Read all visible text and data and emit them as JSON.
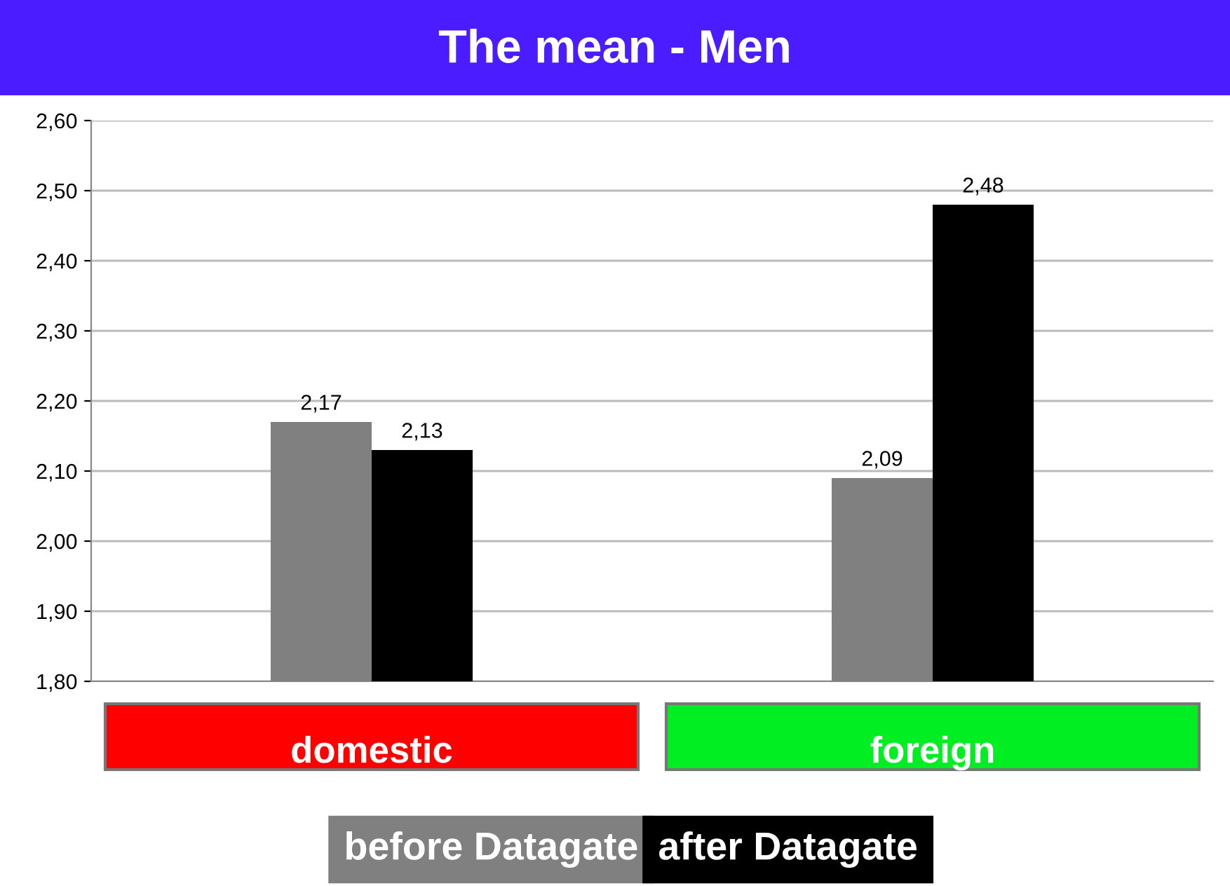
{
  "chart_data": {
    "type": "bar",
    "title": "The mean - Men",
    "categories": [
      "domestic",
      "foreign"
    ],
    "series": [
      {
        "name": "before Datagate",
        "color": "#808080",
        "values": [
          2.17,
          2.09
        ],
        "value_labels": [
          "2,17",
          "2,09"
        ]
      },
      {
        "name": "after Datagate",
        "color": "#000000",
        "values": [
          2.13,
          2.48
        ],
        "value_labels": [
          "2,13",
          "2,48"
        ]
      }
    ],
    "ylim": [
      1.8,
      2.6
    ],
    "yticks": [
      {
        "value": 1.8,
        "label": "1,80"
      },
      {
        "value": 1.9,
        "label": "1,90"
      },
      {
        "value": 2.0,
        "label": "2,00"
      },
      {
        "value": 2.1,
        "label": "2,10"
      },
      {
        "value": 2.2,
        "label": "2,20"
      },
      {
        "value": 2.3,
        "label": "2,30"
      },
      {
        "value": 2.4,
        "label": "2,40"
      },
      {
        "value": 2.5,
        "label": "2,50"
      },
      {
        "value": 2.6,
        "label": "2,60"
      }
    ],
    "grid": "y",
    "legend": "bottom"
  }
}
